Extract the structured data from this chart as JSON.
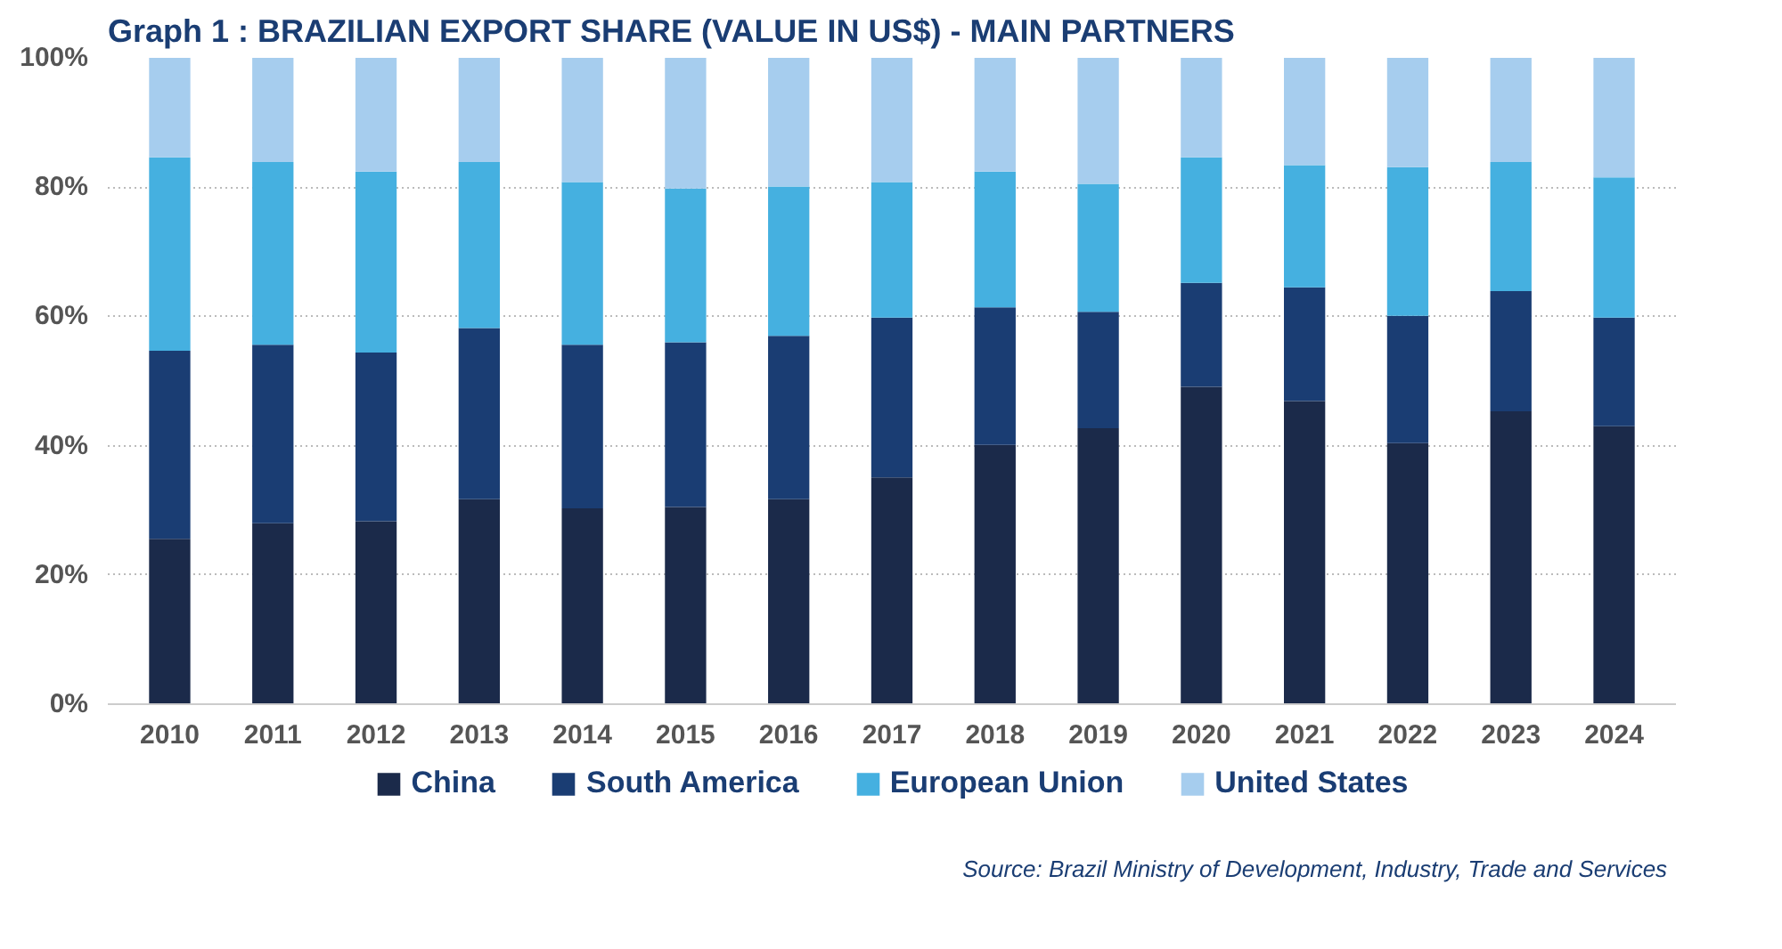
{
  "chart_data": {
    "type": "bar",
    "stacked": true,
    "title": "Graph 1 : BRAZILIAN EXPORT SHARE (VALUE IN US$) - MAIN PARTNERS",
    "categories": [
      "2010",
      "2011",
      "2012",
      "2013",
      "2014",
      "2015",
      "2016",
      "2017",
      "2018",
      "2019",
      "2020",
      "2021",
      "2022",
      "2023",
      "2024"
    ],
    "series": [
      {
        "name": "China",
        "color": "#1b2a4a",
        "values": [
          25.6,
          28.0,
          28.3,
          31.7,
          30.3,
          30.5,
          31.7,
          35.1,
          40.1,
          42.7,
          49.1,
          46.9,
          40.4,
          45.3,
          43.0
        ]
      },
      {
        "name": "South America",
        "color": "#1a3d73",
        "values": [
          29.1,
          27.6,
          26.1,
          26.5,
          25.3,
          25.5,
          25.3,
          24.7,
          21.3,
          18.0,
          16.1,
          17.6,
          19.7,
          18.6,
          16.8
        ]
      },
      {
        "name": "European Union",
        "color": "#45b0e0",
        "values": [
          29.9,
          28.3,
          28.0,
          25.7,
          25.2,
          23.8,
          23.1,
          21.0,
          21.0,
          19.8,
          19.4,
          18.9,
          23.0,
          20.0,
          21.7
        ]
      },
      {
        "name": "United States",
        "color": "#a6cdee",
        "values": [
          15.4,
          16.1,
          17.6,
          16.1,
          19.2,
          20.2,
          19.9,
          19.2,
          17.6,
          19.5,
          15.4,
          16.6,
          16.9,
          16.1,
          18.5
        ]
      }
    ],
    "ylim": [
      0,
      100
    ],
    "yticks": [
      {
        "value": 0,
        "label": "0%"
      },
      {
        "value": 20,
        "label": "20%"
      },
      {
        "value": 40,
        "label": "40%"
      },
      {
        "value": 60,
        "label": "60%"
      },
      {
        "value": 80,
        "label": "80%"
      },
      {
        "value": 100,
        "label": "100%"
      }
    ],
    "grid": "y",
    "legend": "bottom",
    "annotations": [
      "Source: Brazil Ministry of Development, Industry, Trade and Services"
    ]
  }
}
